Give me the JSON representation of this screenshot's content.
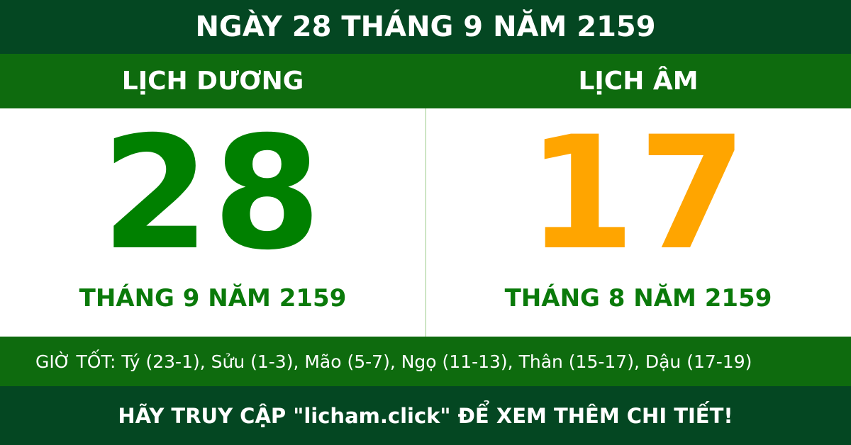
{
  "header": {
    "title": "NGÀY 28 THÁNG 9 NĂM 2159"
  },
  "solar": {
    "label": "LỊCH DƯƠNG",
    "day": "28",
    "month_year": "THÁNG 9 NĂM 2159"
  },
  "lunar": {
    "label": "LỊCH ÂM",
    "day": "17",
    "month_year": "THÁNG 8 NĂM 2159"
  },
  "good_hours": "GIỜ TỐT: Tý (23-1), Sửu (1-3), Mão (5-7), Ngọ (11-13), Thân (15-17), Dậu (17-19)",
  "footer": {
    "cta": "HÃY TRUY CẬP \"licham.click\" ĐỂ XEM THÊM CHI TIẾT!"
  },
  "colors": {
    "dark_green": "#044722",
    "green_band": "#0e6b0e",
    "solar_number": "#008000",
    "lunar_number": "#ffa500"
  }
}
